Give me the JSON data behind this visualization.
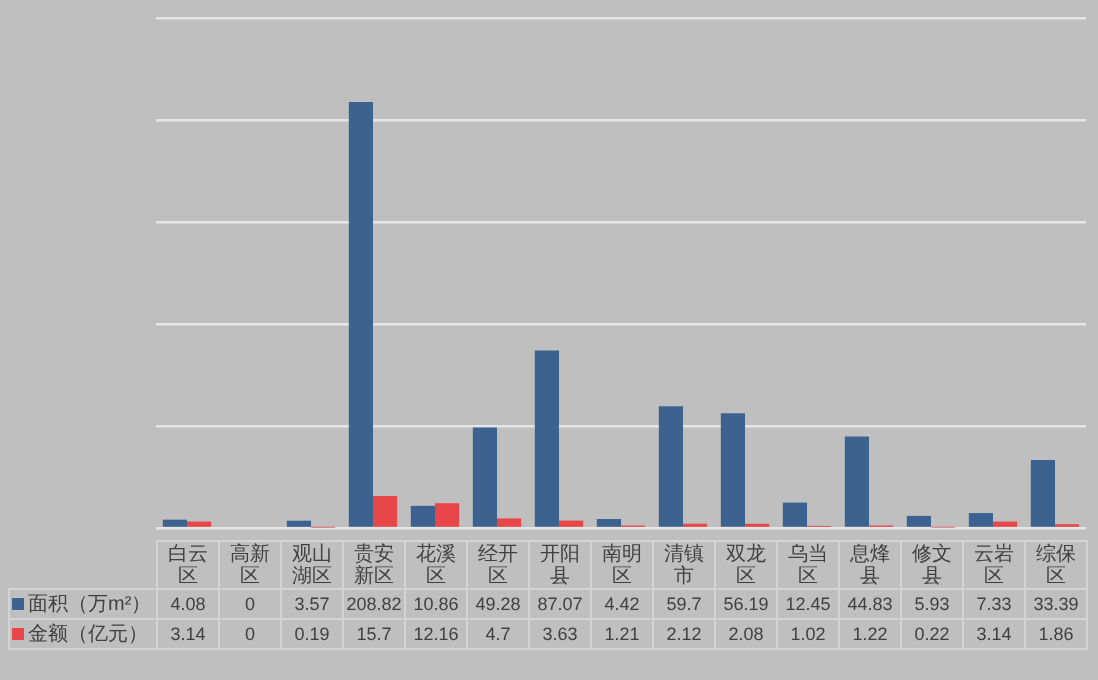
{
  "chart_data": {
    "type": "bar",
    "categories": [
      "白云区",
      "高新区",
      "观山湖区",
      "贵安新区",
      "花溪区",
      "经开区",
      "开阳县",
      "南明区",
      "清镇市",
      "双龙区",
      "乌当区",
      "息烽县",
      "修文县",
      "云岩区",
      "综保区"
    ],
    "series": [
      {
        "name": "面积（万m²）",
        "color": "#3c6390",
        "values": [
          4.08,
          0,
          3.57,
          208.82,
          10.86,
          49.28,
          87.07,
          4.42,
          59.7,
          56.19,
          12.45,
          44.83,
          5.93,
          7.33,
          33.39
        ]
      },
      {
        "name": "金额（亿元）",
        "color": "#e8474a",
        "values": [
          3.14,
          0,
          0.19,
          15.7,
          12.16,
          4.7,
          3.63,
          1.21,
          2.12,
          2.08,
          1.02,
          1.22,
          0.22,
          3.14,
          1.86
        ]
      }
    ],
    "ylim": [
      0,
      250
    ],
    "yticks": [
      {
        "value": 0,
        "label": null
      },
      {
        "value": 50,
        "label": null
      },
      {
        "value": 100,
        "label": null
      },
      {
        "value": 150,
        "label": null
      },
      {
        "value": 200,
        "label": null
      },
      {
        "value": 250,
        "label": null
      }
    ],
    "grid": "y",
    "legend": "bottom",
    "data_labels": true
  }
}
